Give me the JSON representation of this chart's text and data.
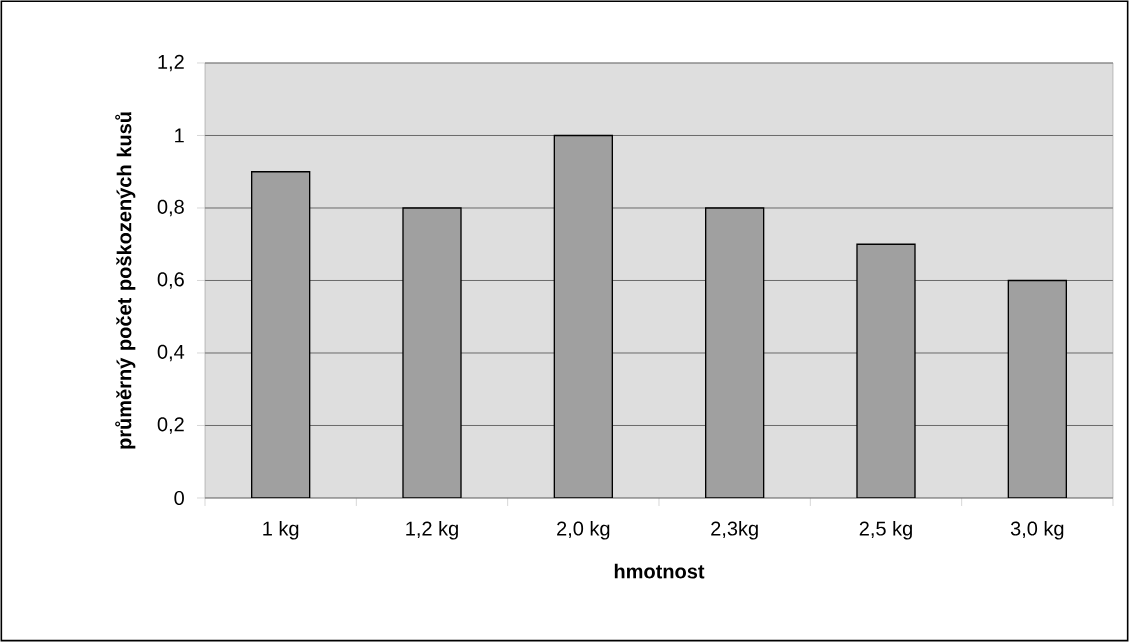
{
  "chart_data": {
    "type": "bar",
    "xlabel": "hmotnost",
    "ylabel": "průměrný počet poškozených kusů",
    "categories": [
      "1 kg",
      "1,2 kg",
      "2,0 kg",
      "2,3kg",
      "2,5 kg",
      "3,0 kg"
    ],
    "values": [
      0.9,
      0.8,
      1.0,
      0.8,
      0.7,
      0.6
    ],
    "color": "#a0a0a0",
    "ylim": [
      0,
      1.2
    ],
    "yticks": [
      0,
      {
        "value": 0.2,
        "label": "0,2"
      },
      {
        "value": 0.4,
        "label": "0,4"
      },
      {
        "value": 0.6,
        "label": "0,6"
      },
      {
        "value": 0.8,
        "label": "0,8"
      },
      1,
      {
        "value": 1.2,
        "label": "1,2"
      }
    ],
    "grid": "y"
  }
}
